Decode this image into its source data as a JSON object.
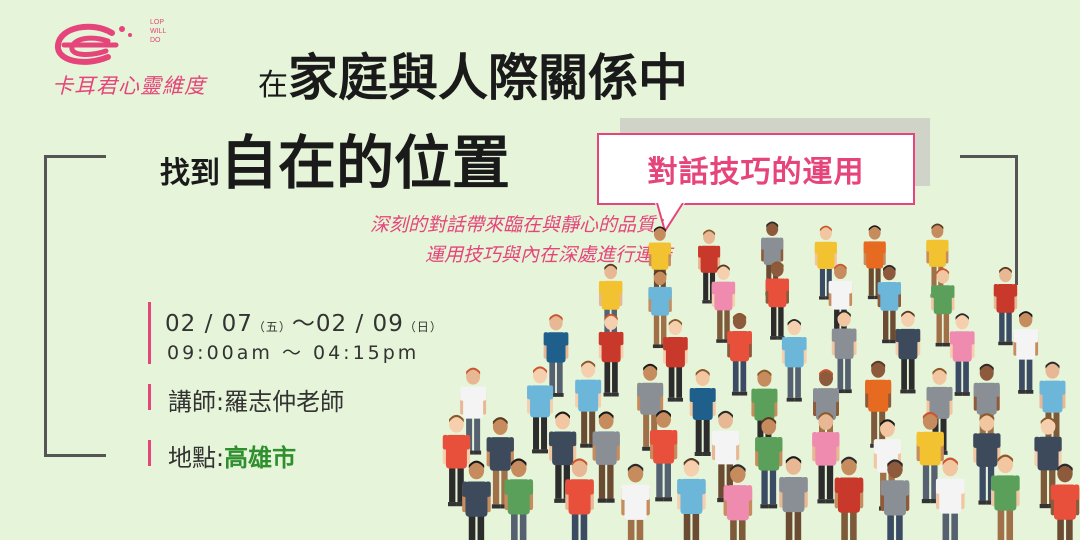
{
  "brand": {
    "name": "卡耳君心靈維度",
    "tagline": [
      "LOP",
      "WILL",
      "DO"
    ],
    "accent": "#e5457a"
  },
  "title": {
    "line1_prefix": "在",
    "line1_main": "家庭與人際關係中",
    "line2_prefix": "找到",
    "line2_main": "自在的位置"
  },
  "bubble": {
    "text": "對話技巧的運用"
  },
  "description": {
    "line1": "深刻的對話帶來臨在與靜心的品質；",
    "line2": "運用技巧與內在深處進行連結"
  },
  "event": {
    "start_date": "02 / 07",
    "start_day": "（五）",
    "separator": "～",
    "end_date": "02 / 09",
    "end_day": "（日）",
    "time": "09:00am ～ 04:15pm",
    "lecturer_label": "講師:",
    "lecturer": "羅志仲老師",
    "location_label": "地點:",
    "location": "高雄市"
  },
  "colors": {
    "background": "#e6f5d9",
    "location_green": "#2f8f2f"
  }
}
